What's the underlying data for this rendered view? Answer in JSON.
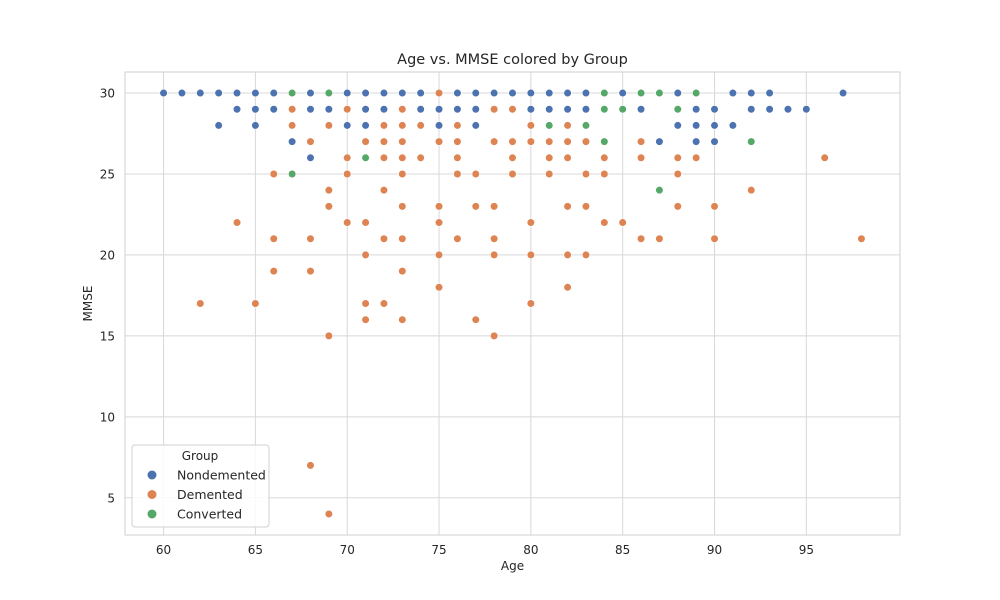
{
  "chart_data": {
    "type": "scatter",
    "title": "Age vs. MMSE colored by Group",
    "xlabel": "Age",
    "ylabel": "MMSE",
    "xlim": [
      57.9,
      100.1
    ],
    "ylim": [
      2.7,
      31.3
    ],
    "xticks": [
      60,
      65,
      70,
      75,
      80,
      85,
      90,
      95
    ],
    "yticks": [
      5,
      10,
      15,
      20,
      25,
      30
    ],
    "grid": true,
    "legend": {
      "title": "Group",
      "placement": "lower-left"
    },
    "series": [
      {
        "name": "Nondemented",
        "color": "#4c72b0",
        "points": [
          [
            60,
            30
          ],
          [
            61,
            30
          ],
          [
            62,
            30
          ],
          [
            63,
            30
          ],
          [
            63,
            28
          ],
          [
            64,
            30
          ],
          [
            64,
            29
          ],
          [
            65,
            30
          ],
          [
            65,
            29
          ],
          [
            65,
            28
          ],
          [
            66,
            30
          ],
          [
            66,
            29
          ],
          [
            67,
            29
          ],
          [
            67,
            27
          ],
          [
            68,
            30
          ],
          [
            68,
            29
          ],
          [
            68,
            26
          ],
          [
            69,
            29
          ],
          [
            70,
            30
          ],
          [
            70,
            28
          ],
          [
            71,
            30
          ],
          [
            71,
            29
          ],
          [
            71,
            28
          ],
          [
            72,
            30
          ],
          [
            72,
            29
          ],
          [
            73,
            30
          ],
          [
            73,
            29
          ],
          [
            74,
            30
          ],
          [
            74,
            29
          ],
          [
            75,
            30
          ],
          [
            75,
            29
          ],
          [
            75,
            28
          ],
          [
            76,
            30
          ],
          [
            76,
            29
          ],
          [
            76,
            28
          ],
          [
            77,
            30
          ],
          [
            77,
            29
          ],
          [
            77,
            28
          ],
          [
            78,
            30
          ],
          [
            78,
            29
          ],
          [
            79,
            30
          ],
          [
            79,
            29
          ],
          [
            80,
            30
          ],
          [
            80,
            29
          ],
          [
            81,
            30
          ],
          [
            81,
            29
          ],
          [
            82,
            30
          ],
          [
            82,
            29
          ],
          [
            83,
            30
          ],
          [
            83,
            29
          ],
          [
            84,
            30
          ],
          [
            85,
            30
          ],
          [
            85,
            29
          ],
          [
            86,
            30
          ],
          [
            86,
            29
          ],
          [
            87,
            30
          ],
          [
            87,
            27
          ],
          [
            88,
            30
          ],
          [
            88,
            28
          ],
          [
            89,
            29
          ],
          [
            89,
            28
          ],
          [
            89,
            27
          ],
          [
            90,
            29
          ],
          [
            90,
            28
          ],
          [
            90,
            27
          ],
          [
            91,
            30
          ],
          [
            91,
            28
          ],
          [
            92,
            30
          ],
          [
            92,
            29
          ],
          [
            93,
            30
          ],
          [
            93,
            29
          ],
          [
            94,
            29
          ],
          [
            95,
            29
          ],
          [
            97,
            30
          ]
        ]
      },
      {
        "name": "Demented",
        "color": "#dd8452",
        "points": [
          [
            62,
            17
          ],
          [
            64,
            22
          ],
          [
            65,
            17
          ],
          [
            66,
            25
          ],
          [
            66,
            21
          ],
          [
            66,
            19
          ],
          [
            67,
            29
          ],
          [
            67,
            28
          ],
          [
            68,
            27
          ],
          [
            68,
            21
          ],
          [
            68,
            19
          ],
          [
            68,
            7
          ],
          [
            69,
            28
          ],
          [
            69,
            24
          ],
          [
            69,
            23
          ],
          [
            69,
            15
          ],
          [
            69,
            4
          ],
          [
            70,
            29
          ],
          [
            70,
            26
          ],
          [
            70,
            25
          ],
          [
            70,
            22
          ],
          [
            71,
            27
          ],
          [
            71,
            22
          ],
          [
            71,
            20
          ],
          [
            71,
            17
          ],
          [
            71,
            16
          ],
          [
            72,
            28
          ],
          [
            72,
            27
          ],
          [
            72,
            26
          ],
          [
            72,
            24
          ],
          [
            72,
            21
          ],
          [
            72,
            17
          ],
          [
            73,
            29
          ],
          [
            73,
            28
          ],
          [
            73,
            27
          ],
          [
            73,
            26
          ],
          [
            73,
            25
          ],
          [
            73,
            23
          ],
          [
            73,
            21
          ],
          [
            73,
            19
          ],
          [
            73,
            16
          ],
          [
            74,
            28
          ],
          [
            74,
            26
          ],
          [
            75,
            30
          ],
          [
            75,
            27
          ],
          [
            75,
            23
          ],
          [
            75,
            22
          ],
          [
            75,
            20
          ],
          [
            75,
            18
          ],
          [
            76,
            28
          ],
          [
            76,
            27
          ],
          [
            76,
            26
          ],
          [
            76,
            25
          ],
          [
            76,
            21
          ],
          [
            77,
            25
          ],
          [
            77,
            23
          ],
          [
            77,
            16
          ],
          [
            78,
            29
          ],
          [
            78,
            27
          ],
          [
            78,
            23
          ],
          [
            78,
            21
          ],
          [
            78,
            20
          ],
          [
            78,
            15
          ],
          [
            79,
            29
          ],
          [
            79,
            27
          ],
          [
            79,
            26
          ],
          [
            79,
            25
          ],
          [
            80,
            28
          ],
          [
            80,
            27
          ],
          [
            80,
            22
          ],
          [
            80,
            20
          ],
          [
            80,
            17
          ],
          [
            81,
            27
          ],
          [
            81,
            26
          ],
          [
            81,
            25
          ],
          [
            82,
            28
          ],
          [
            82,
            27
          ],
          [
            82,
            26
          ],
          [
            82,
            23
          ],
          [
            82,
            20
          ],
          [
            82,
            18
          ],
          [
            83,
            27
          ],
          [
            83,
            25
          ],
          [
            83,
            23
          ],
          [
            83,
            20
          ],
          [
            84,
            26
          ],
          [
            84,
            25
          ],
          [
            84,
            22
          ],
          [
            85,
            22
          ],
          [
            86,
            27
          ],
          [
            86,
            26
          ],
          [
            86,
            21
          ],
          [
            87,
            21
          ],
          [
            88,
            26
          ],
          [
            88,
            25
          ],
          [
            88,
            23
          ],
          [
            89,
            26
          ],
          [
            90,
            23
          ],
          [
            90,
            21
          ],
          [
            92,
            24
          ],
          [
            96,
            26
          ],
          [
            98,
            21
          ]
        ]
      },
      {
        "name": "Converted",
        "color": "#55a868",
        "points": [
          [
            67,
            30
          ],
          [
            67,
            25
          ],
          [
            69,
            30
          ],
          [
            71,
            26
          ],
          [
            81,
            28
          ],
          [
            83,
            28
          ],
          [
            84,
            30
          ],
          [
            84,
            29
          ],
          [
            84,
            27
          ],
          [
            85,
            29
          ],
          [
            86,
            30
          ],
          [
            87,
            30
          ],
          [
            87,
            24
          ],
          [
            88,
            29
          ],
          [
            89,
            30
          ],
          [
            92,
            27
          ]
        ]
      }
    ]
  }
}
